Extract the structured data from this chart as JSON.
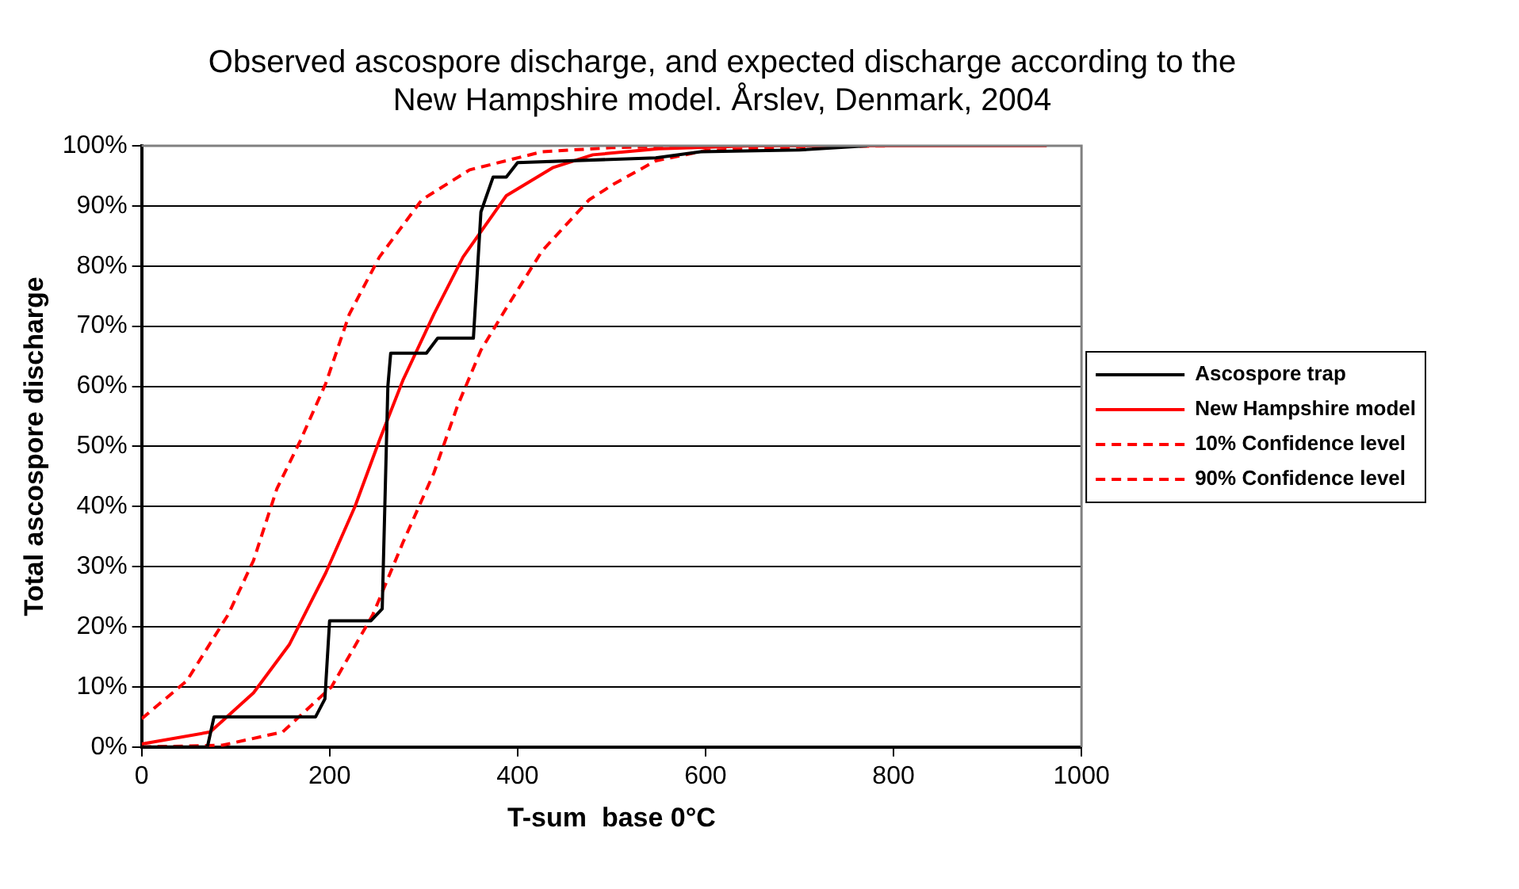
{
  "chart_data": {
    "type": "line",
    "title": "Observed ascospore discharge, and expected discharge according to the\nNew Hampshire model. Årslev, Denmark, 2004",
    "xlabel": "T-sum  base 0°C",
    "ylabel": "Total ascospore discharge",
    "xlim": [
      0,
      1000
    ],
    "xticks": [
      0,
      200,
      400,
      600,
      800,
      1000
    ],
    "ylim": [
      0,
      100
    ],
    "yticks": [
      {
        "value": 0,
        "label": "0%"
      },
      {
        "value": 10,
        "label": "10%"
      },
      {
        "value": 20,
        "label": "20%"
      },
      {
        "value": 30,
        "label": "30%"
      },
      {
        "value": 40,
        "label": "40%"
      },
      {
        "value": 50,
        "label": "50%"
      },
      {
        "value": 60,
        "label": "60%"
      },
      {
        "value": 70,
        "label": "70%"
      },
      {
        "value": 80,
        "label": "80%"
      },
      {
        "value": 90,
        "label": "90%"
      },
      {
        "value": 100,
        "label": "100%"
      }
    ],
    "grid": "y",
    "legend": "right",
    "marker": "none",
    "series": [
      {
        "name": "Ascospore trap",
        "color": "#000000",
        "line_style": "solid",
        "x": [
          0,
          70,
          77,
          185,
          195,
          200,
          244,
          256,
          262,
          265,
          303,
          315,
          353,
          361,
          374,
          388,
          400,
          547,
          595,
          700,
          772
        ],
        "values": [
          0,
          0,
          5,
          5,
          8,
          21,
          21,
          23,
          60,
          65.5,
          65.5,
          68,
          68,
          89,
          94.8,
          94.8,
          97.2,
          98,
          99,
          99.3,
          100
        ]
      },
      {
        "name": "New Hampshire model",
        "color": "#ff0000",
        "line_style": "solid",
        "x": [
          0,
          73,
          119,
          157,
          196,
          227,
          253,
          278,
          311,
          342,
          388,
          438,
          480,
          550,
          650,
          963
        ],
        "values": [
          0.5,
          2.5,
          9,
          17,
          29,
          40,
          51,
          61,
          72,
          81.5,
          91.7,
          96.4,
          98.5,
          99.5,
          100,
          100
        ]
      },
      {
        "name": "10% Confidence level",
        "color": "#ff0000",
        "line_style": "dashed",
        "x": [
          0,
          48,
          92,
          119,
          144,
          169,
          196,
          221,
          253,
          298,
          349,
          426,
          500,
          600,
          963
        ],
        "values": [
          4.7,
          11,
          22,
          31,
          43,
          51,
          60.5,
          72,
          81.5,
          91,
          96,
          99,
          99.7,
          100,
          100
        ]
      },
      {
        "name": "90% Confidence level",
        "color": "#ff0000",
        "line_style": "dashed",
        "x": [
          0,
          86,
          150,
          202,
          246,
          278,
          311,
          336,
          361,
          388,
          426,
          476,
          502,
          547,
          600,
          700,
          800,
          963
        ],
        "values": [
          0,
          0.3,
          2.5,
          10,
          22,
          34,
          45.6,
          56.7,
          66,
          73,
          82.5,
          91,
          93.6,
          97.5,
          99.2,
          99.8,
          100,
          100
        ]
      }
    ]
  }
}
